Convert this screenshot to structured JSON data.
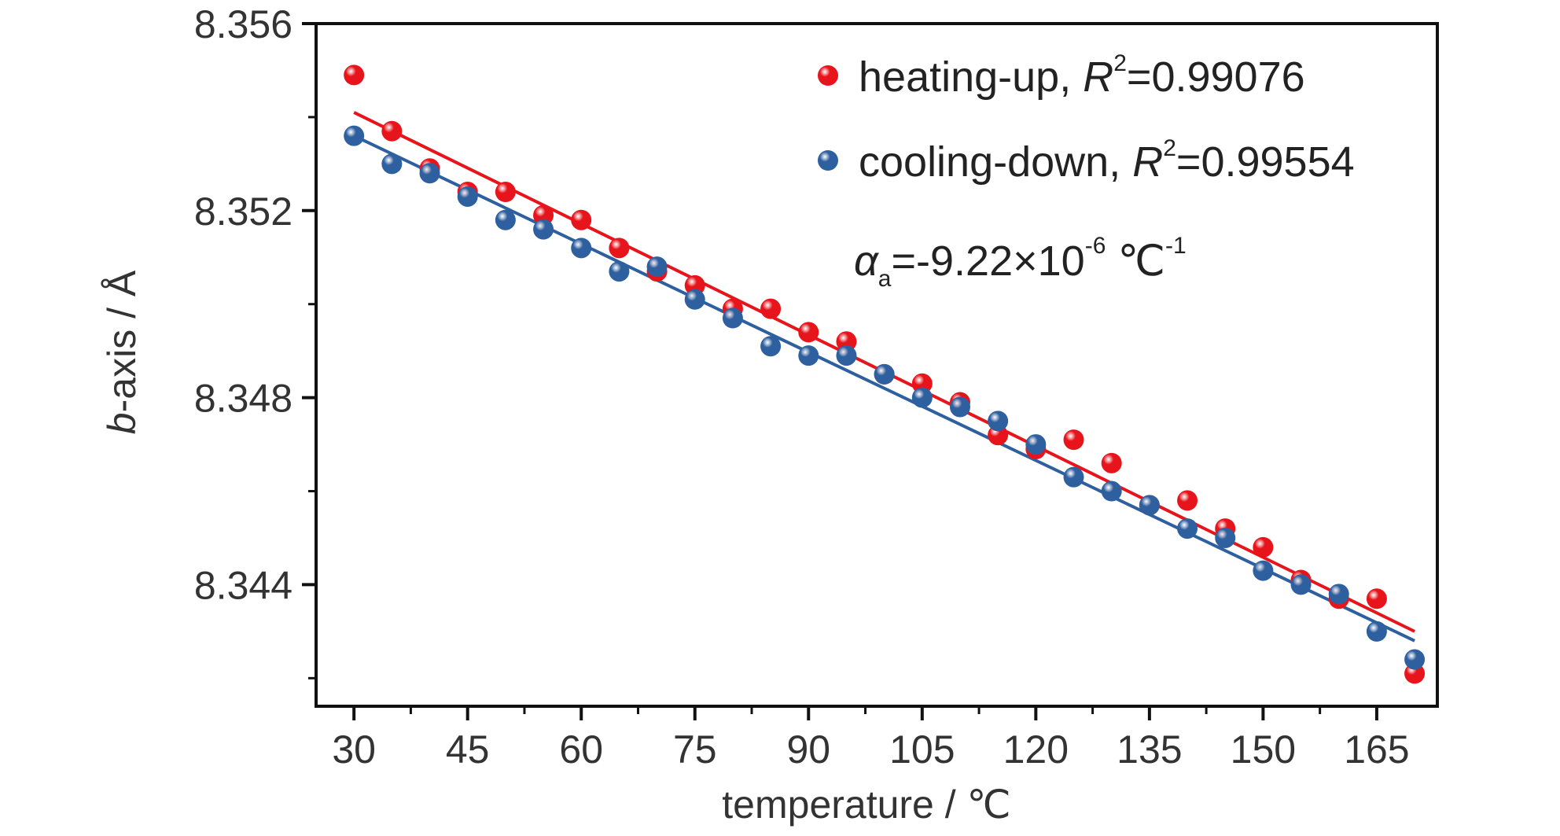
{
  "chart_data": {
    "type": "scatter",
    "xlabel": "temperature / ℃",
    "ylabel": {
      "italic": "b",
      "rest": "-axis / Å"
    },
    "xlim": [
      25,
      173
    ],
    "ylim": [
      8.3414,
      8.356
    ],
    "x_ticks": [
      30,
      45,
      60,
      75,
      90,
      105,
      120,
      135,
      150,
      165
    ],
    "x_tick_labels": [
      "30",
      "45",
      "60",
      "75",
      "90",
      "105",
      "120",
      "135",
      "150",
      "165"
    ],
    "x_minor_ticks": [
      37.5,
      52.5,
      67.5,
      82.5,
      97.5,
      112.5,
      127.5,
      142.5,
      157.5
    ],
    "y_ticks": [
      8.356,
      8.352,
      8.348,
      8.344
    ],
    "y_tick_labels": [
      "8.356",
      "8.352",
      "8.348",
      "8.344"
    ],
    "y_minor_ticks": [
      8.354,
      8.35,
      8.346,
      8.342
    ],
    "grid": false,
    "legend_position": "top-right",
    "series": [
      {
        "name": "heating-up",
        "color": "#e8141c",
        "r2_label": "R",
        "r2_sup": "2",
        "r2_value": "=0.99076",
        "legend_sep": ", ",
        "x": [
          30,
          35,
          40,
          45,
          50,
          55,
          60,
          65,
          70,
          75,
          80,
          85,
          90,
          95,
          100,
          105,
          110,
          115,
          120,
          125,
          130,
          135,
          140,
          145,
          150,
          155,
          160,
          165,
          170
        ],
        "y": [
          8.3549,
          8.3537,
          8.3529,
          8.3524,
          8.3524,
          8.3519,
          8.3518,
          8.3512,
          8.3507,
          8.3504,
          8.3499,
          8.3499,
          8.3494,
          8.3492,
          8.3485,
          8.3483,
          8.3479,
          8.3472,
          8.3469,
          8.3471,
          8.3466,
          8.3457,
          8.3458,
          8.3452,
          8.3448,
          8.3441,
          8.3437,
          8.3437,
          8.3421
        ],
        "fit": [
          [
            30,
            8.3541
          ],
          [
            170,
            8.343
          ]
        ]
      },
      {
        "name": "cooling-down",
        "color": "#2e5f9e",
        "r2_label": "R",
        "r2_sup": "2",
        "r2_value": "=0.99554",
        "legend_sep": ", ",
        "x": [
          30,
          35,
          40,
          45,
          50,
          55,
          60,
          65,
          70,
          75,
          80,
          85,
          90,
          95,
          100,
          105,
          110,
          115,
          120,
          125,
          130,
          135,
          140,
          145,
          150,
          155,
          160,
          165,
          170
        ],
        "y": [
          8.3536,
          8.353,
          8.3528,
          8.3523,
          8.3518,
          8.3516,
          8.3512,
          8.3507,
          8.3508,
          8.3501,
          8.3497,
          8.3491,
          8.3489,
          8.3489,
          8.3485,
          8.348,
          8.3478,
          8.3475,
          8.347,
          8.3463,
          8.346,
          8.3457,
          8.3452,
          8.345,
          8.3443,
          8.344,
          8.3438,
          8.343,
          8.3424
        ],
        "fit": [
          [
            30,
            8.3536
          ],
          [
            170,
            8.3428
          ]
        ]
      }
    ],
    "annotation": {
      "symbol": "α",
      "sub": "a",
      "text": "=-9.22×10",
      "exp": "-6",
      "unit": " ℃",
      "unit_exp": "-1"
    }
  }
}
